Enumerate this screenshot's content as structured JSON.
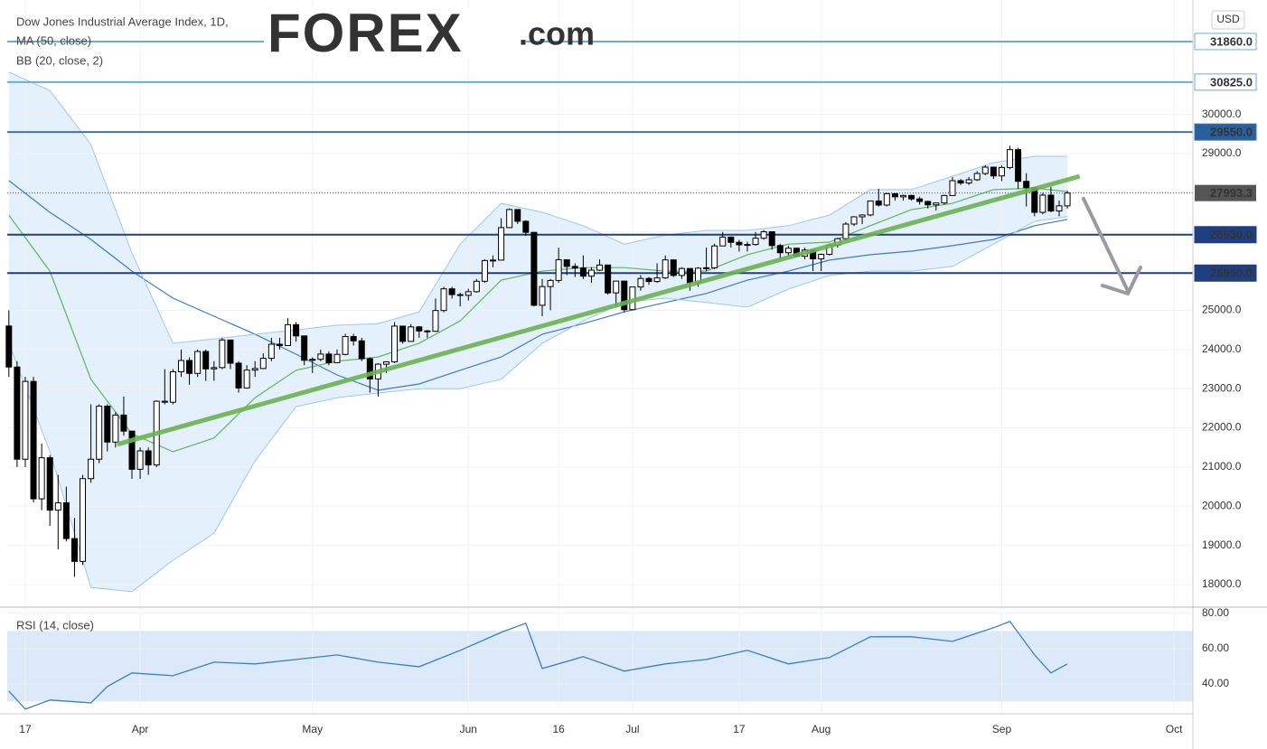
{
  "chart_data": [
    {
      "type": "candlestick",
      "title": "Dow Jones Industrial Average Index, 1D,",
      "logo": "FOREX",
      "logo_suffix": ".com",
      "logo_color": "#1c3a5e",
      "currency": "USD",
      "up_color": "#ffffff",
      "down_color": "#000000",
      "xlim": [
        -0.2,
        144.3
      ],
      "ylim": [
        17470,
        32920
      ],
      "yticks": [
        {
          "value": 18000,
          "label": "18000.0"
        },
        {
          "value": 19000,
          "label": "19000.0"
        },
        {
          "value": 20000,
          "label": "20000.0"
        },
        {
          "value": 21000,
          "label": "21000.0"
        },
        {
          "value": 22000,
          "label": "22000.0"
        },
        {
          "value": 23000,
          "label": "23000.0"
        },
        {
          "value": 24000,
          "label": "24000.0"
        },
        {
          "value": 25000,
          "label": "25000.0"
        },
        {
          "value": 26000,
          "label": "26000.0"
        },
        {
          "value": 27000,
          "label": "27000.0"
        },
        {
          "value": 28000,
          "label": "28000.0"
        },
        {
          "value": 29000,
          "label": "29000.0"
        },
        {
          "value": 30000,
          "label": "30000.0"
        }
      ],
      "grid": true,
      "open": [
        24600,
        23553,
        21200,
        23185,
        20189,
        21237,
        19899,
        20087,
        19174,
        18592,
        20704,
        21200,
        22552,
        21637,
        22327,
        21917,
        20943,
        21413,
        21053,
        22680,
        22654,
        23433,
        23719,
        23390,
        23949,
        23505,
        23538,
        24242,
        23650,
        23018,
        23475,
        23515,
        23775,
        24134,
        24101,
        24633,
        24346,
        23724,
        23749,
        23883,
        23664,
        23875,
        24331,
        24221,
        23765,
        23248,
        23625,
        23685,
        24597,
        24207,
        24576,
        24474,
        24465,
        24995,
        25548,
        25401,
        25383,
        25475,
        25742,
        26270,
        26282,
        27111,
        27572,
        27272,
        26990,
        25128,
        25606,
        25763,
        26290,
        26120,
        26080,
        25871,
        26025,
        26156,
        25445,
        25746,
        25016,
        25595,
        25813,
        25735,
        25827,
        26287,
        25890,
        26067,
        25706,
        26075,
        26086,
        26643,
        26870,
        26735,
        26672,
        26680,
        26840,
        27005,
        26652,
        26470,
        26584,
        26379,
        26540,
        26314,
        26428,
        26664,
        26828,
        27201,
        27386,
        27433,
        27791,
        27686,
        27977,
        27896,
        27931,
        27844,
        27778,
        27692,
        27740,
        27930,
        28308,
        28249,
        28332,
        28492,
        28654,
        28430,
        28645,
        29100,
        28292,
        28133,
        27500,
        27940,
        27535,
        27666
      ],
      "high": [
        25000,
        23700,
        23300,
        23300,
        21600,
        21300,
        20800,
        20500,
        19700,
        20800,
        22600,
        22600,
        22600,
        22400,
        22800,
        21917,
        21500,
        21500,
        22700,
        23500,
        23500,
        24000,
        23800,
        24000,
        24000,
        23700,
        24300,
        24250,
        23700,
        23600,
        23700,
        23900,
        24300,
        24300,
        24800,
        24700,
        24350,
        23800,
        24000,
        23950,
        24000,
        24400,
        24400,
        24300,
        23800,
        23650,
        23700,
        24700,
        24600,
        24650,
        24600,
        24500,
        25300,
        25600,
        25600,
        25450,
        25550,
        25800,
        26300,
        26400,
        27350,
        27600,
        27580,
        27300,
        26990,
        25800,
        25800,
        26600,
        26300,
        26200,
        26400,
        26100,
        26300,
        26150,
        25750,
        25750,
        25600,
        25900,
        25850,
        26200,
        26400,
        26300,
        26100,
        26070,
        26100,
        26600,
        26700,
        27000,
        26880,
        26800,
        26750,
        27000,
        27050,
        27000,
        26700,
        26650,
        26600,
        26600,
        26550,
        26450,
        26700,
        26850,
        27250,
        27400,
        27450,
        27800,
        28100,
        28000,
        27990,
        27950,
        27950,
        27900,
        27800,
        27750,
        27950,
        28400,
        28350,
        28400,
        28550,
        28700,
        28650,
        28700,
        29200,
        29150,
        28500,
        28000,
        28000,
        28150,
        27800,
        28050
      ],
      "low": [
        23300,
        21000,
        21000,
        20100,
        19900,
        19500,
        18900,
        19100,
        18200,
        18500,
        20600,
        21100,
        21400,
        21500,
        21800,
        20700,
        20700,
        20800,
        21000,
        22600,
        22600,
        23300,
        23100,
        23300,
        23200,
        23200,
        23500,
        23500,
        22900,
        23000,
        23300,
        23500,
        23700,
        24000,
        24100,
        24200,
        23600,
        23400,
        23700,
        23600,
        23650,
        23850,
        24100,
        23700,
        22900,
        22800,
        23400,
        23650,
        24150,
        24200,
        24300,
        24300,
        24450,
        24950,
        25300,
        25100,
        25250,
        25450,
        25700,
        26100,
        26270,
        27100,
        27200,
        26900,
        25100,
        24850,
        25000,
        25700,
        25900,
        25850,
        25800,
        25700,
        26000,
        25400,
        25100,
        24950,
        25000,
        25500,
        25650,
        25700,
        25800,
        25850,
        25800,
        25500,
        25600,
        26000,
        26050,
        26640,
        26600,
        26500,
        26500,
        26650,
        26800,
        26550,
        26300,
        26400,
        26350,
        26300,
        26000,
        26000,
        26400,
        26600,
        26800,
        27150,
        27200,
        27400,
        27650,
        27650,
        27800,
        27800,
        27800,
        27700,
        27600,
        27550,
        27700,
        27920,
        28200,
        28200,
        28300,
        28450,
        28350,
        28300,
        28600,
        28100,
        27650,
        27400,
        27450,
        27500,
        27400,
        27600
      ],
      "close": [
        23553,
        21200,
        23185,
        20189,
        21237,
        19899,
        20087,
        19174,
        18592,
        20704,
        21200,
        22552,
        21637,
        22327,
        21917,
        20943,
        21413,
        21053,
        22680,
        22654,
        23433,
        23719,
        23390,
        23949,
        23505,
        23538,
        24242,
        23650,
        23018,
        23475,
        23515,
        23775,
        24134,
        24101,
        24633,
        24346,
        23724,
        23749,
        23883,
        23664,
        23875,
        24331,
        24221,
        23765,
        23248,
        23625,
        23685,
        24597,
        24207,
        24576,
        24474,
        24465,
        24995,
        25548,
        25401,
        25383,
        25475,
        25742,
        26270,
        26282,
        27111,
        27572,
        27272,
        26990,
        25128,
        25606,
        25763,
        26290,
        26120,
        26080,
        25871,
        26025,
        26156,
        25445,
        25746,
        25016,
        25595,
        25813,
        25735,
        25827,
        26287,
        25890,
        26067,
        25706,
        26075,
        26086,
        26643,
        26870,
        26735,
        26672,
        26680,
        26840,
        27005,
        26652,
        26470,
        26584,
        26379,
        26540,
        26314,
        26428,
        26664,
        26828,
        27201,
        27386,
        27433,
        27791,
        27686,
        27977,
        27896,
        27931,
        27844,
        27778,
        27692,
        27740,
        27930,
        28308,
        28249,
        28332,
        28492,
        28654,
        28430,
        28645,
        29100,
        28292,
        28133,
        27500,
        27940,
        27535,
        27666,
        27993
      ],
      "overlays": [
        {
          "name": "MA (50, close)",
          "color": "#3b7dc4",
          "x": [
            0,
            5,
            10,
            15,
            20,
            25,
            30,
            35,
            40,
            45,
            50,
            55,
            60,
            65,
            70,
            75,
            80,
            85,
            90,
            95,
            100,
            105,
            110,
            115,
            120,
            125,
            129
          ],
          "values": [
            28310,
            27500,
            26810,
            26000,
            25310,
            24850,
            24390,
            23880,
            23350,
            22960,
            23120,
            23470,
            23810,
            24390,
            24660,
            24960,
            25200,
            25430,
            25770,
            26000,
            26280,
            26420,
            26510,
            26650,
            26810,
            27160,
            27320
          ]
        },
        {
          "name": "BB (20, close, 2)",
          "color": "#5cb85c",
          "band_color": "#9cc8ec",
          "fill": "#e4f0fb",
          "x": [
            0,
            5,
            10,
            15,
            20,
            25,
            30,
            35,
            40,
            45,
            50,
            55,
            60,
            65,
            70,
            75,
            80,
            85,
            90,
            95,
            100,
            105,
            110,
            115,
            120,
            125,
            129
          ],
          "values": [
            27430,
            26000,
            23240,
            21850,
            21390,
            21740,
            22770,
            23470,
            23700,
            23810,
            24160,
            24730,
            25770,
            26000,
            26090,
            26090,
            26000,
            26000,
            26420,
            26690,
            26740,
            27160,
            27570,
            27730,
            28080,
            28120,
            28030
          ],
          "upper": [
            31080,
            30610,
            29230,
            26460,
            24160,
            24270,
            24390,
            24500,
            24620,
            24660,
            24960,
            26690,
            27730,
            27500,
            27160,
            26690,
            26920,
            27040,
            27040,
            27160,
            27430,
            28080,
            28080,
            28420,
            28770,
            28930,
            28930
          ],
          "lower": [
            24160,
            21390,
            17930,
            17820,
            18620,
            19310,
            21160,
            22540,
            22770,
            22890,
            23000,
            23000,
            23240,
            24160,
            24730,
            25200,
            25310,
            25200,
            25080,
            25540,
            25890,
            26000,
            26000,
            26120,
            26690,
            27270,
            27390
          ]
        }
      ],
      "trendline": {
        "color": "#6ab352",
        "x": [
          13.2,
          130.5
        ],
        "values": [
          21580,
          28420
        ]
      },
      "levels": [
        {
          "value": 31860,
          "label": "31860.0",
          "color": "#6aaed6",
          "label_fill": "#ffffff",
          "label_color": "#1f3f80"
        },
        {
          "value": 30825,
          "label": "30825.0",
          "color": "#6aaed6",
          "label_fill": "#ffffff",
          "label_color": "#1f3f80"
        },
        {
          "value": 29550,
          "label": "29550.0",
          "color": "#3a74b4",
          "label_fill": "#2a5f9e",
          "label_color": "#ffffff"
        },
        {
          "value": 26930,
          "label": "26930.0",
          "color": "#1f3f80",
          "label_fill": "#1f3f80",
          "label_color": "#ffffff"
        },
        {
          "value": 25950,
          "label": "25950.0",
          "color": "#1f3f80",
          "label_fill": "#1f3f80",
          "label_color": "#ffffff"
        }
      ],
      "last": {
        "value": 27993.3,
        "label": "27993.3",
        "color": "#555555"
      }
    },
    {
      "type": "line",
      "title": "RSI (14, close)",
      "xlim": [
        -0.2,
        144.3
      ],
      "ylim": [
        23,
        83
      ],
      "yticks": [
        {
          "value": 40,
          "label": "40.00"
        },
        {
          "value": 60,
          "label": "60.00"
        },
        {
          "value": 80,
          "label": "80.00"
        }
      ],
      "xticks": [
        {
          "value": 2,
          "label": "17"
        },
        {
          "value": 16,
          "label": "Apr"
        },
        {
          "value": 37,
          "label": "May"
        },
        {
          "value": 56,
          "label": "Jun"
        },
        {
          "value": 67,
          "label": "16"
        },
        {
          "value": 76,
          "label": "Jul"
        },
        {
          "value": 89,
          "label": "17"
        },
        {
          "value": 99,
          "label": "Aug"
        },
        {
          "value": 121,
          "label": "Sep"
        },
        {
          "value": 142,
          "label": "Oct"
        }
      ],
      "band": [
        30,
        70
      ],
      "band_color": "#dbe9f8",
      "series": [
        {
          "color": "#3a7fc1",
          "x": [
            0,
            2,
            5,
            10,
            12,
            15,
            20,
            25,
            30,
            35,
            40,
            45,
            50,
            55,
            60,
            63,
            65,
            70,
            75,
            80,
            85,
            90,
            95,
            100,
            105,
            110,
            115,
            120,
            122,
            125,
            127,
            129
          ],
          "values": [
            35.9,
            25.6,
            30.8,
            29.2,
            38.5,
            46.2,
            44.6,
            52.3,
            51.3,
            53.8,
            56.4,
            52.3,
            49.7,
            59.0,
            69.2,
            74.4,
            48.7,
            55.4,
            47.2,
            51.3,
            53.8,
            59.0,
            51.3,
            54.9,
            66.7,
            66.7,
            64.1,
            71.8,
            75.4,
            56.4,
            46.2,
            51.3
          ]
        }
      ]
    }
  ]
}
